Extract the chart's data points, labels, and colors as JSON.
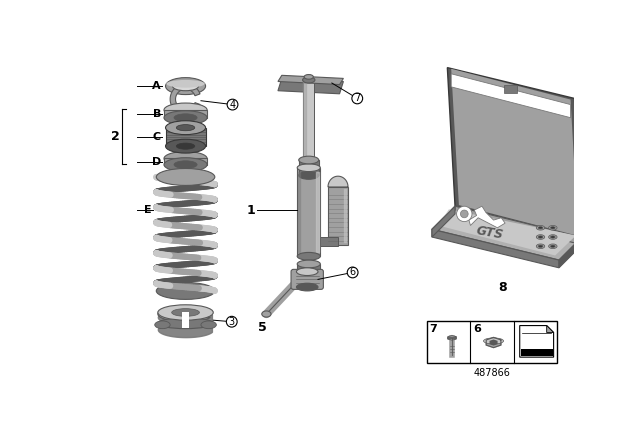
{
  "bg_color": "#ffffff",
  "part_number": "487866",
  "G1": "#c8c8c8",
  "G2": "#a0a0a0",
  "G3": "#787878",
  "G4": "#585858",
  "G5": "#d8d8d8",
  "DARK": "#383838",
  "labels_A_to_E": [
    "A",
    "B",
    "C",
    "D",
    "E"
  ],
  "callout_nums": [
    "1",
    "2",
    "3",
    "4",
    "5",
    "6",
    "7",
    "8"
  ]
}
